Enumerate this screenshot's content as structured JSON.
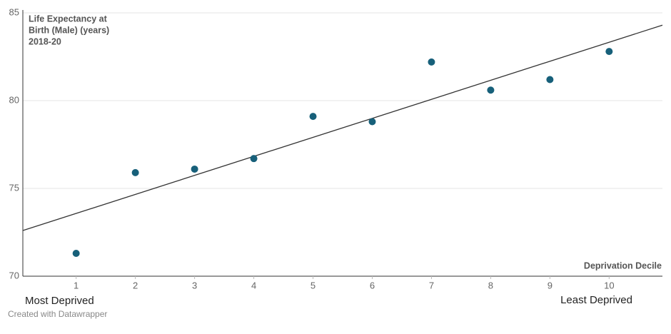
{
  "chart_data": {
    "type": "scatter",
    "y_title_lines": [
      "Life Expectancy at",
      "Birth (Male) (years)",
      "2018-20"
    ],
    "x_title": "Deprivation Decile",
    "annotations": [
      "Most Deprived",
      "Least Deprived"
    ],
    "footer": "Created with Datawrapper",
    "x": [
      1,
      2,
      3,
      4,
      5,
      6,
      7,
      8,
      9,
      10
    ],
    "values": [
      71.3,
      75.9,
      76.1,
      76.7,
      79.1,
      78.8,
      82.2,
      80.6,
      81.2,
      82.8
    ],
    "color": "#17607a",
    "trendline": {
      "x": [
        0.1,
        10.9
      ],
      "values": [
        72.6,
        84.3
      ],
      "color": "#333333"
    },
    "xlim": [
      0.1,
      10.9
    ],
    "xticks": [
      1,
      2,
      3,
      4,
      5,
      6,
      7,
      8,
      9,
      10
    ],
    "ylim": [
      70,
      85
    ],
    "yticks": [
      70,
      75,
      80,
      85
    ],
    "grid": true
  }
}
